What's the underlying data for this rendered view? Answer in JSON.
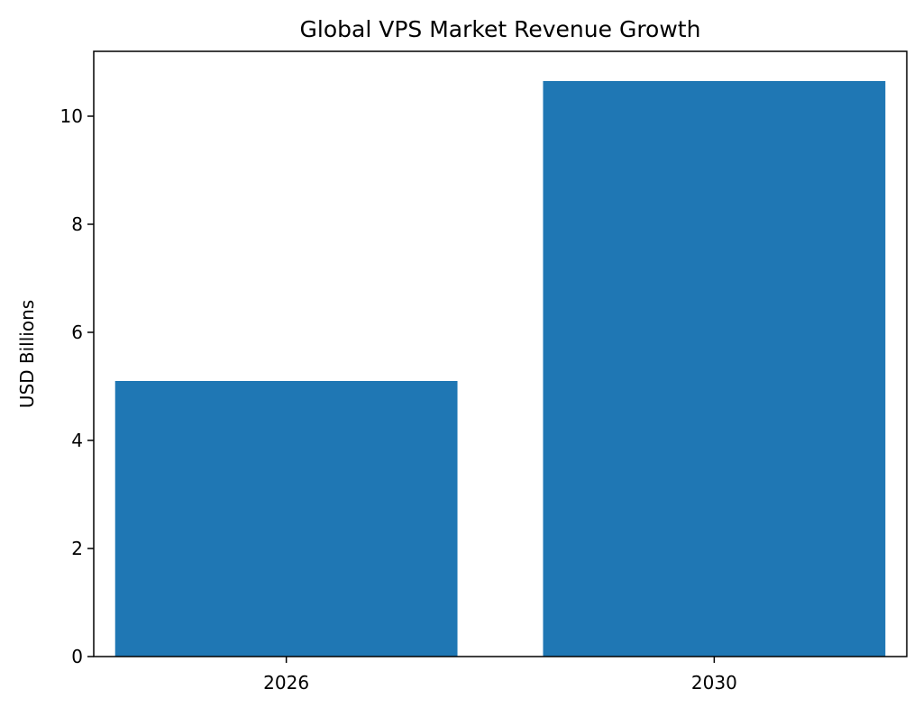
{
  "chart_data": {
    "type": "bar",
    "title": "Global VPS Market Revenue Growth",
    "xlabel": "",
    "ylabel": "USD Billions",
    "categories": [
      "2026",
      "2030"
    ],
    "values": [
      5.1,
      10.65
    ],
    "ylim": [
      0,
      11.2
    ],
    "yticks": [
      0,
      2,
      4,
      6,
      8,
      10
    ],
    "grid": false,
    "legend": "none",
    "bar_color": "#1f77b4"
  }
}
